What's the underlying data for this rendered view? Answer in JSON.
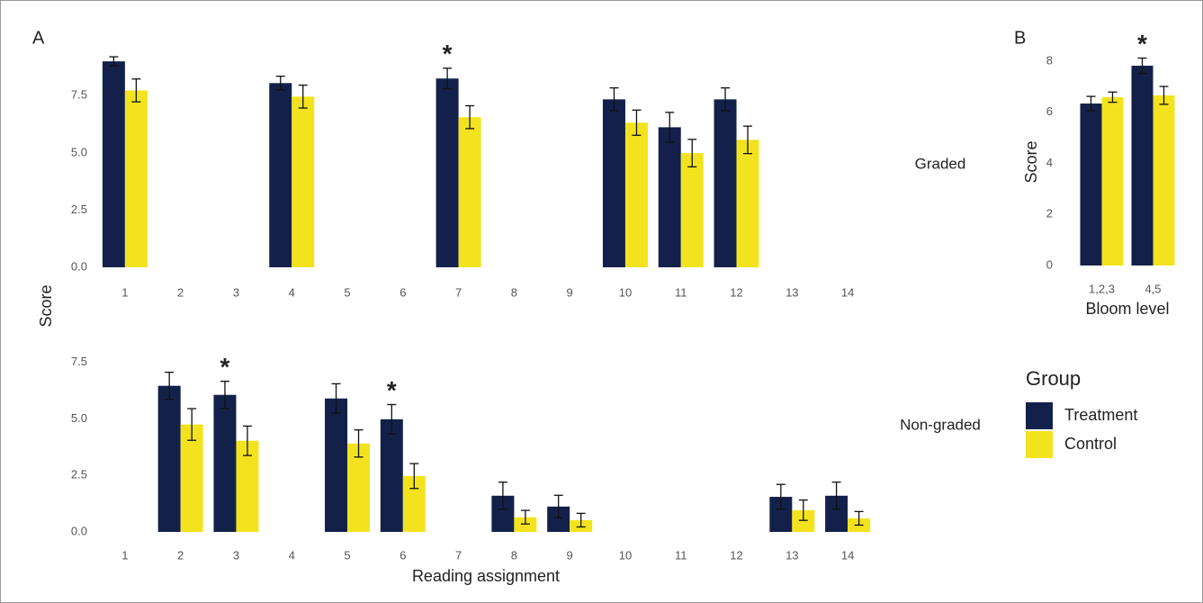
{
  "figure": {
    "panel_labels": [
      "A",
      "B"
    ],
    "y_label": "Score",
    "x_label": "Reading assignment",
    "legend_title": "Group"
  },
  "chart_data": [
    {
      "type": "bar",
      "strip_label": "Graded",
      "categories": [
        "1",
        "2",
        "3",
        "4",
        "5",
        "6",
        "7",
        "8",
        "9",
        "10",
        "11",
        "12",
        "13",
        "14"
      ],
      "series": [
        {
          "name": "Treatment",
          "color": "#13214a",
          "values": [
            9.0,
            null,
            null,
            8.05,
            null,
            null,
            8.25,
            null,
            null,
            7.34,
            6.12,
            7.34,
            null,
            null
          ],
          "errors": [
            0.2,
            null,
            null,
            0.3,
            null,
            null,
            0.45,
            null,
            null,
            0.5,
            0.65,
            0.5,
            null,
            null
          ]
        },
        {
          "name": "Control",
          "color": "#f3e31f",
          "values": [
            7.73,
            null,
            null,
            7.46,
            null,
            null,
            6.56,
            null,
            null,
            6.32,
            4.99,
            5.57,
            null,
            null
          ],
          "errors": [
            0.5,
            null,
            null,
            0.5,
            null,
            null,
            0.5,
            null,
            null,
            0.55,
            0.6,
            0.6,
            null,
            null
          ]
        }
      ],
      "markers": [
        null,
        null,
        null,
        null,
        null,
        null,
        "*",
        null,
        null,
        null,
        null,
        null,
        null,
        null
      ],
      "ylim": [
        0,
        9.4
      ],
      "yticks": [
        {
          "value": 0,
          "label": "0.0"
        },
        2.5,
        {
          "value": 5,
          "label": "5.0"
        },
        7.5
      ]
    },
    {
      "type": "bar",
      "strip_label": "Non-graded",
      "categories": [
        "1",
        "2",
        "3",
        "4",
        "5",
        "6",
        "7",
        "8",
        "9",
        "10",
        "11",
        "12",
        "13",
        "14"
      ],
      "series": [
        {
          "color": "#13214a",
          "values": [
            null,
            6.46,
            6.06,
            null,
            5.9,
            4.98,
            null,
            1.6,
            1.12,
            null,
            null,
            null,
            1.55,
            1.6
          ],
          "errors": [
            null,
            0.6,
            0.6,
            null,
            0.65,
            0.65,
            null,
            0.6,
            0.5,
            null,
            null,
            null,
            0.55,
            0.6
          ]
        },
        {
          "color": "#f3e31f",
          "values": [
            null,
            4.75,
            4.03,
            null,
            3.91,
            2.47,
            null,
            0.65,
            0.52,
            null,
            null,
            null,
            0.96,
            0.6
          ],
          "errors": [
            null,
            0.7,
            0.65,
            null,
            0.6,
            0.55,
            null,
            0.3,
            0.3,
            null,
            null,
            null,
            0.45,
            0.3
          ]
        }
      ],
      "markers": [
        null,
        null,
        "*",
        null,
        null,
        "*",
        null,
        null,
        null,
        null,
        null,
        null,
        null,
        null
      ],
      "ylim": [
        0,
        7.8
      ],
      "yticks": [
        {
          "value": 0,
          "label": "0.0"
        },
        2.5,
        {
          "value": 5,
          "label": "5.0"
        },
        7.5
      ]
    },
    {
      "type": "bar",
      "x_label": "Bloom level",
      "categories": [
        "1,2,3",
        "4,5"
      ],
      "series": [
        {
          "color": "#13214a",
          "values": [
            6.34,
            7.82
          ],
          "errors": [
            0.28,
            0.3
          ]
        },
        {
          "color": "#f3e31f",
          "values": [
            6.59,
            6.66
          ],
          "errors": [
            0.2,
            0.35
          ]
        }
      ],
      "markers": [
        null,
        "*"
      ],
      "ylim": [
        0,
        8.35
      ],
      "yticks": [
        0,
        2,
        4,
        6,
        8
      ]
    }
  ]
}
